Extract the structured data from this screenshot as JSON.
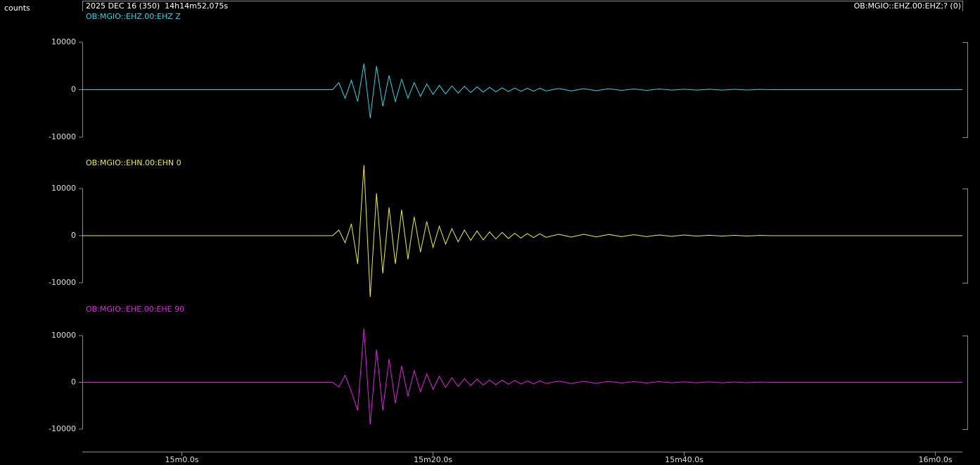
{
  "header": {
    "y_unit": "counts",
    "time": "2025 DEC 16 (350)  14h14m52,075s",
    "channel": "OB:MGIO::EHZ.00:EHZ;? (0)"
  },
  "chart_data": [
    {
      "type": "line",
      "title": "OB:MGIO::EHZ.00:EHZ Z",
      "x": [
        52.075,
        72,
        72.5,
        73,
        73.5,
        74,
        74.5,
        75,
        75.5,
        76,
        76.5,
        77,
        77.5,
        78,
        78.5,
        79,
        79.5,
        80,
        80.5,
        81,
        81.5,
        82,
        82.5,
        83,
        83.5,
        84,
        84.5,
        85,
        85.5,
        86,
        86.5,
        87,
        87.5,
        88,
        88.5,
        89,
        90,
        91,
        92,
        93,
        94,
        95,
        96,
        97,
        98,
        99,
        100,
        101,
        102,
        103,
        104,
        105,
        106,
        107,
        122.15
      ],
      "series": [
        {
          "name": "EHZ",
          "color": "#22d8e6",
          "values": [
            0,
            0,
            1500,
            -1800,
            2000,
            -2500,
            5500,
            -6000,
            5000,
            -3500,
            3000,
            -2500,
            2200,
            -1800,
            1500,
            -1400,
            1200,
            -1000,
            900,
            -900,
            800,
            -700,
            700,
            -600,
            600,
            -500,
            500,
            -450,
            400,
            -400,
            350,
            -350,
            300,
            -300,
            300,
            -250,
            250,
            -250,
            200,
            -200,
            200,
            -150,
            150,
            -150,
            150,
            -100,
            100,
            -100,
            100,
            -100,
            80,
            -80,
            50,
            0,
            0
          ]
        }
      ],
      "xlim": [
        52.075,
        122.15
      ],
      "ylim": [
        -10000,
        10000
      ],
      "yticks": [
        -10000,
        0,
        10000
      ]
    },
    {
      "type": "line",
      "title": "OB:MGIO::EHN.00:EHN 0",
      "x": [
        52.075,
        72,
        72.5,
        73,
        73.5,
        74,
        74.5,
        75,
        75.5,
        76,
        76.5,
        77,
        77.5,
        78,
        78.5,
        79,
        79.5,
        80,
        80.5,
        81,
        81.5,
        82,
        82.5,
        83,
        83.5,
        84,
        84.5,
        85,
        85.5,
        86,
        86.5,
        87,
        87.5,
        88,
        88.5,
        89,
        90,
        91,
        92,
        93,
        94,
        95,
        96,
        97,
        98,
        99,
        100,
        101,
        102,
        103,
        104,
        105,
        106,
        107,
        122.15
      ],
      "series": [
        {
          "name": "EHN",
          "color": "#f0f020",
          "values": [
            0,
            0,
            1200,
            -1500,
            2500,
            -6000,
            15000,
            -13000,
            9000,
            -8000,
            6000,
            -6000,
            5500,
            -5000,
            4000,
            -3500,
            3000,
            -2500,
            2000,
            -1800,
            1500,
            -1300,
            1200,
            -1000,
            1000,
            -900,
            800,
            -700,
            700,
            -600,
            500,
            -500,
            450,
            -400,
            400,
            -350,
            300,
            -300,
            300,
            -250,
            250,
            -200,
            200,
            -200,
            150,
            -150,
            150,
            -100,
            100,
            -100,
            80,
            -80,
            50,
            0,
            0
          ]
        }
      ],
      "xlim": [
        52.075,
        122.15
      ],
      "ylim": [
        -10000,
        10000
      ],
      "yticks": [
        -10000,
        0,
        10000
      ]
    },
    {
      "type": "line",
      "title": "OB:MGIO::EHE.00:EHE 90",
      "x": [
        52.075,
        72,
        72.5,
        73,
        73.5,
        74,
        74.5,
        75,
        75.5,
        76,
        76.5,
        77,
        77.5,
        78,
        78.5,
        79,
        79.5,
        80,
        80.5,
        81,
        81.5,
        82,
        82.5,
        83,
        83.5,
        84,
        84.5,
        85,
        85.5,
        86,
        86.5,
        87,
        87.5,
        88,
        88.5,
        89,
        90,
        91,
        92,
        93,
        94,
        95,
        96,
        97,
        98,
        99,
        100,
        101,
        102,
        103,
        104,
        105,
        106,
        107,
        122.15
      ],
      "series": [
        {
          "name": "EHE",
          "color": "#e020e0",
          "values": [
            0,
            0,
            -1000,
            1500,
            -2000,
            -6000,
            11500,
            -9000,
            7000,
            -6000,
            5000,
            -4500,
            3500,
            -3000,
            2500,
            -2000,
            1800,
            -1500,
            1300,
            -1100,
            1000,
            -900,
            800,
            -700,
            700,
            -600,
            500,
            -500,
            450,
            -400,
            400,
            -350,
            300,
            -300,
            300,
            -250,
            250,
            -250,
            200,
            -200,
            200,
            -150,
            150,
            -150,
            150,
            -100,
            100,
            -100,
            100,
            -100,
            80,
            -80,
            50,
            0,
            0
          ]
        }
      ],
      "xlim": [
        52.075,
        122.15
      ],
      "ylim": [
        -10000,
        10000
      ],
      "yticks": [
        -10000,
        0,
        10000
      ],
      "xticks": [
        {
          "value": 60,
          "label": "15m0.0s"
        },
        {
          "value": 80,
          "label": "15m20.0s"
        },
        {
          "value": 100,
          "label": "15m40.0s"
        },
        {
          "value": 120,
          "label": "16m0.0s"
        }
      ]
    }
  ]
}
